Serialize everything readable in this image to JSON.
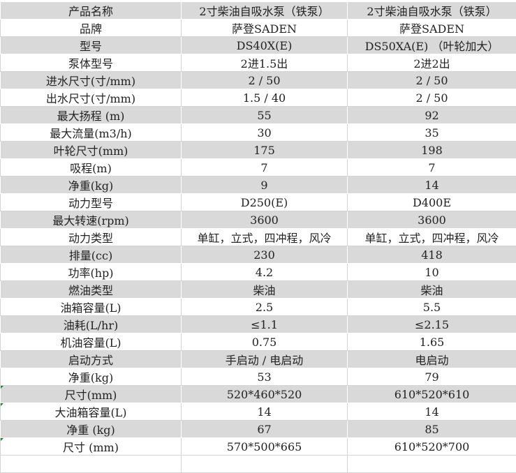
{
  "rows": [
    [
      "产品名称",
      "2寸柴油自吸水泵（铁泵）",
      "2寸柴油自吸水泵（铁泵）"
    ],
    [
      "品牌",
      "萨登SADEN",
      "萨登SADEN"
    ],
    [
      "型号",
      "DS40X(E)",
      "DS50XA(E) （叶轮加大）"
    ],
    [
      "泵体型号",
      "2进1.5出",
      "2进2出"
    ],
    [
      "进水尺寸(寸/mm)",
      "2 / 50",
      "2 / 50"
    ],
    [
      "出水尺寸(寸/mm)",
      "1.5 / 40",
      "2 / 50"
    ],
    [
      "最大扬程 (m)",
      "55",
      "92"
    ],
    [
      "最大流量(m3/h)",
      "30",
      "35"
    ],
    [
      "叶轮尺寸(mm)",
      "175",
      "198"
    ],
    [
      "吸程(m)",
      "7",
      "7"
    ],
    [
      "净重(kg)",
      "9",
      "14"
    ],
    [
      "动力型号",
      "D250(E)",
      "D400E"
    ],
    [
      "最大转速(rpm)",
      "3600",
      "3600"
    ],
    [
      "动力类型",
      "单缸，立式，四冲程，风冷",
      "单缸，立式，四冲程，风冷"
    ],
    [
      "排量(cc)",
      "230",
      "418"
    ],
    [
      "功率(hp)",
      "4.2",
      "10"
    ],
    [
      "燃油类型",
      "柴油",
      "柴油"
    ],
    [
      "油箱容量(L)",
      "2.5",
      "5.5"
    ],
    [
      "油耗(L/hr)",
      "≤1.1",
      "≤2.15"
    ],
    [
      "机油容量(L)",
      "0.75",
      "1.65"
    ],
    [
      "启动方式",
      "手启动 / 电启动",
      "电启动"
    ],
    [
      "净重(kg)",
      "53",
      "79"
    ],
    [
      "尺寸(mm)",
      "520*460*520",
      "610*520*610"
    ],
    [
      "大油箱容量(L)",
      "14",
      "14"
    ],
    [
      "净重 (kg)",
      "67",
      "85"
    ],
    [
      "尺寸 (mm)",
      "570*500*665",
      "610*520*700"
    ],
    [
      "",
      "",
      ""
    ]
  ],
  "colors": {
    "band": "#d9d9d9",
    "grid": "#d4d4d4",
    "comment_marker": "#1e7b34"
  }
}
